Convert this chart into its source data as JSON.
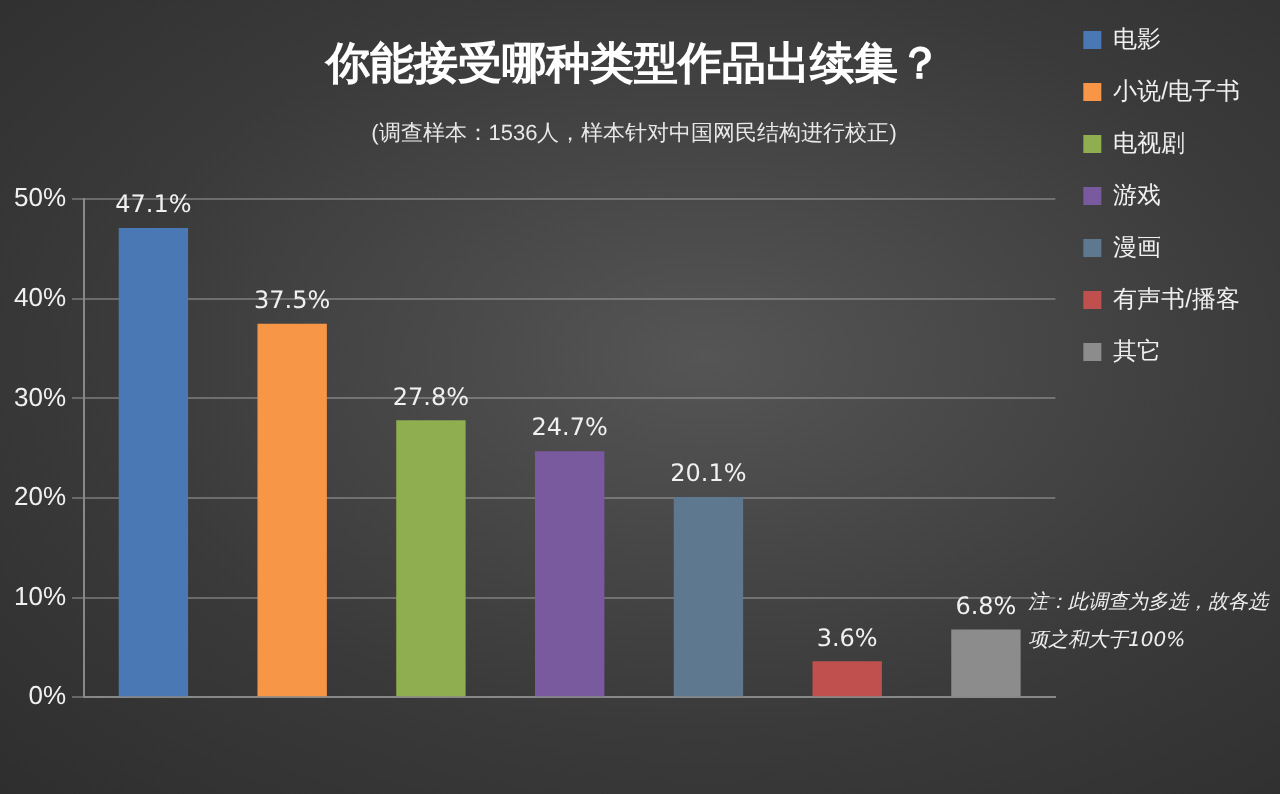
{
  "chart_data": {
    "type": "bar",
    "title": "你能接受哪种类型作品出续集？",
    "subtitle": "(调查样本：1536人，样本针对中国网民结构进行校正)",
    "categories": [
      null,
      null,
      null,
      null,
      null,
      null,
      null
    ],
    "series": [
      {
        "name": "电影",
        "color": "#4a78b4",
        "values": [
          47.1,
          null,
          null,
          null,
          null,
          null,
          null
        ],
        "value_labels": [
          "47.1%",
          null,
          null,
          null,
          null,
          null,
          null
        ]
      },
      {
        "name": "小说/电子书",
        "color": "#f79646",
        "values": [
          null,
          37.5,
          null,
          null,
          null,
          null,
          null
        ],
        "value_labels": [
          null,
          "37.5%",
          null,
          null,
          null,
          null,
          null
        ]
      },
      {
        "name": "电视剧",
        "color": "#8eae4f",
        "values": [
          null,
          null,
          27.8,
          null,
          null,
          null,
          null
        ],
        "value_labels": [
          null,
          null,
          "27.8%",
          null,
          null,
          null,
          null
        ]
      },
      {
        "name": "游戏",
        "color": "#7a5a9e",
        "values": [
          null,
          null,
          null,
          24.7,
          null,
          null,
          null
        ],
        "value_labels": [
          null,
          null,
          null,
          "24.7%",
          null,
          null,
          null
        ]
      },
      {
        "name": "漫画",
        "color": "#5e7890",
        "values": [
          null,
          null,
          null,
          null,
          20.1,
          null,
          null
        ],
        "value_labels": [
          null,
          null,
          null,
          null,
          "20.1%",
          null,
          null
        ]
      },
      {
        "name": "有声书/播客",
        "color": "#c0504d",
        "values": [
          null,
          null,
          null,
          null,
          null,
          3.6,
          null
        ],
        "value_labels": [
          null,
          null,
          null,
          null,
          null,
          "3.6%",
          null
        ]
      },
      {
        "name": "其它",
        "color": "#8c8c8c",
        "values": [
          null,
          null,
          null,
          null,
          null,
          null,
          6.8
        ],
        "value_labels": [
          null,
          null,
          null,
          null,
          null,
          null,
          "6.8%"
        ]
      }
    ],
    "ylim": [
      0,
      50
    ],
    "yticks": [
      {
        "value": 0,
        "label": "0%"
      },
      {
        "value": 10,
        "label": "10%"
      },
      {
        "value": 20,
        "label": "20%"
      },
      {
        "value": 30,
        "label": "30%"
      },
      {
        "value": 40,
        "label": "40%"
      },
      {
        "value": 50,
        "label": "50%"
      }
    ],
    "grid": "y",
    "legend": "right",
    "annotations": [
      "注：此调查为多选，故各选项之和大于100%"
    ]
  }
}
